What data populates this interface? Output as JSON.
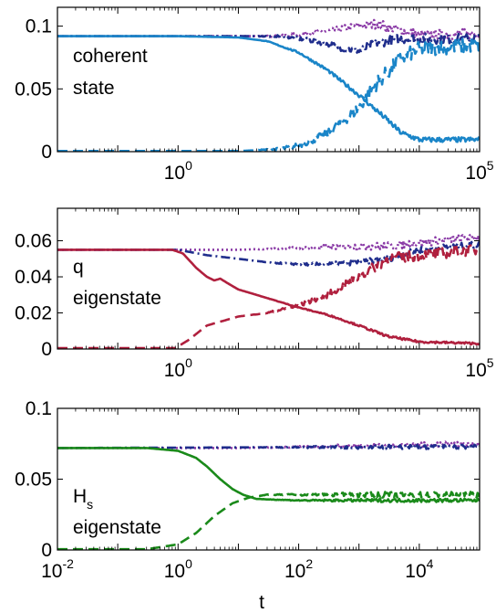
{
  "figure": {
    "xlabel": "t"
  },
  "chart_data": [
    {
      "type": "line",
      "title": "",
      "xlabel": "",
      "ylabel": "",
      "x_scale": "log",
      "xlim": [
        0.01,
        100000
      ],
      "ylim": [
        0,
        0.115
      ],
      "yticks": [
        0,
        0.05,
        0.1
      ],
      "ytick_labels": [
        "0",
        "0.05",
        "0.1"
      ],
      "xticks": [
        {
          "base": "10",
          "exp": "0",
          "value": 1
        },
        {
          "base": "10",
          "exp": "5",
          "value": 100000
        }
      ],
      "annotation": [
        "coherent",
        "state"
      ],
      "color_main": "#1a85c8",
      "series": [
        {
          "style": "solid",
          "color": "#1a85c8",
          "noise": 0.002,
          "points": [
            [
              0.01,
              0.092
            ],
            [
              1,
              0.092
            ],
            [
              10,
              0.091
            ],
            [
              30,
              0.088
            ],
            [
              100,
              0.079
            ],
            [
              300,
              0.065
            ],
            [
              1000,
              0.045
            ],
            [
              3000,
              0.025
            ],
            [
              5000,
              0.015
            ],
            [
              10000,
              0.0095
            ],
            [
              100000,
              0.0095
            ]
          ]
        },
        {
          "style": "dashed",
          "color": "#1a85c8",
          "noise": 0.006,
          "points": [
            [
              0.01,
              0.0005
            ],
            [
              10,
              0.0005
            ],
            [
              50,
              0.002
            ],
            [
              100,
              0.005
            ],
            [
              300,
              0.014
            ],
            [
              1000,
              0.035
            ],
            [
              2000,
              0.055
            ],
            [
              5000,
              0.074
            ],
            [
              10000,
              0.082
            ],
            [
              100000,
              0.085
            ]
          ]
        },
        {
          "style": "dashdot",
          "color": "#1f2d8c",
          "noise": 0.004,
          "points": [
            [
              0.01,
              0.092
            ],
            [
              50,
              0.092
            ],
            [
              200,
              0.088
            ],
            [
              500,
              0.083
            ],
            [
              1000,
              0.08
            ],
            [
              2000,
              0.087
            ],
            [
              5000,
              0.09
            ],
            [
              100000,
              0.09
            ]
          ]
        },
        {
          "style": "dotted",
          "color": "#8a3aa6",
          "noise": 0.004,
          "points": [
            [
              0.01,
              0.092
            ],
            [
              50,
              0.092
            ],
            [
              300,
              0.096
            ],
            [
              1000,
              0.1
            ],
            [
              2000,
              0.102
            ],
            [
              3000,
              0.099
            ],
            [
              10000,
              0.093
            ],
            [
              100000,
              0.094
            ]
          ]
        }
      ]
    },
    {
      "type": "line",
      "title": "",
      "xlabel": "",
      "ylabel": "",
      "x_scale": "log",
      "xlim": [
        0.01,
        100000
      ],
      "ylim": [
        0,
        0.078
      ],
      "yticks": [
        0,
        0.02,
        0.04,
        0.06
      ],
      "ytick_labels": [
        "0",
        "0.02",
        "0.04",
        "0.06"
      ],
      "xticks": [
        {
          "base": "10",
          "exp": "0",
          "value": 1
        },
        {
          "base": "10",
          "exp": "5",
          "value": 100000
        }
      ],
      "annotation": [
        "q",
        "eigenstate"
      ],
      "color_main": "#b0203e",
      "series": [
        {
          "style": "solid",
          "color": "#b0203e",
          "noise": 0.0006,
          "points": [
            [
              0.01,
              0.055
            ],
            [
              0.8,
              0.055
            ],
            [
              1.2,
              0.053
            ],
            [
              2,
              0.045
            ],
            [
              3,
              0.04
            ],
            [
              4,
              0.038
            ],
            [
              5,
              0.039
            ],
            [
              7,
              0.036
            ],
            [
              10,
              0.033
            ],
            [
              20,
              0.03
            ],
            [
              50,
              0.026
            ],
            [
              100,
              0.023
            ],
            [
              300,
              0.019
            ],
            [
              1000,
              0.013
            ],
            [
              3000,
              0.007
            ],
            [
              10000,
              0.004
            ],
            [
              100000,
              0.003
            ]
          ]
        },
        {
          "style": "dashed",
          "color": "#b0203e",
          "noise": 0.003,
          "points": [
            [
              0.01,
              0.0005
            ],
            [
              0.9,
              0.0005
            ],
            [
              1.5,
              0.005
            ],
            [
              3,
              0.013
            ],
            [
              10,
              0.018
            ],
            [
              30,
              0.02
            ],
            [
              100,
              0.024
            ],
            [
              300,
              0.03
            ],
            [
              1000,
              0.04
            ],
            [
              3000,
              0.05
            ],
            [
              10000,
              0.052
            ],
            [
              100000,
              0.055
            ]
          ]
        },
        {
          "style": "dashdot",
          "color": "#1f2d8c",
          "noise": 0.0018,
          "points": [
            [
              0.01,
              0.055
            ],
            [
              1,
              0.055
            ],
            [
              3,
              0.052
            ],
            [
              10,
              0.05
            ],
            [
              30,
              0.048
            ],
            [
              100,
              0.047
            ],
            [
              300,
              0.047
            ],
            [
              1000,
              0.048
            ],
            [
              3000,
              0.05
            ],
            [
              10000,
              0.055
            ],
            [
              100000,
              0.058
            ]
          ]
        },
        {
          "style": "dotted",
          "color": "#8a3aa6",
          "noise": 0.0022,
          "points": [
            [
              0.01,
              0.055
            ],
            [
              10,
              0.055
            ],
            [
              100,
              0.056
            ],
            [
              1000,
              0.057
            ],
            [
              3000,
              0.057
            ],
            [
              10000,
              0.059
            ],
            [
              100000,
              0.062
            ]
          ]
        }
      ]
    },
    {
      "type": "line",
      "title": "",
      "xlabel": "t",
      "ylabel": "",
      "x_scale": "log",
      "xlim": [
        0.01,
        100000
      ],
      "ylim": [
        0,
        0.1
      ],
      "yticks": [
        0,
        0.05,
        0.1
      ],
      "ytick_labels": [
        "0",
        "0.05",
        "0.1"
      ],
      "xticks": [
        {
          "base": "10",
          "exp": "-2",
          "value": 0.01
        },
        {
          "base": "10",
          "exp": "0",
          "value": 1
        },
        {
          "base": "10",
          "exp": "2",
          "value": 100
        },
        {
          "base": "10",
          "exp": "4",
          "value": 10000
        }
      ],
      "annotation": [
        "H",
        "s",
        "eigenstate"
      ],
      "color_main": "#1a8a1a",
      "series": [
        {
          "style": "solid",
          "color": "#1a8a1a",
          "noise": 0.0012,
          "points": [
            [
              0.01,
              0.072
            ],
            [
              0.3,
              0.072
            ],
            [
              1,
              0.07
            ],
            [
              2,
              0.065
            ],
            [
              3,
              0.059
            ],
            [
              5,
              0.05
            ],
            [
              8,
              0.043
            ],
            [
              12,
              0.039
            ],
            [
              20,
              0.036
            ],
            [
              100,
              0.035
            ],
            [
              100000,
              0.035
            ]
          ]
        },
        {
          "style": "dashed",
          "color": "#1a8a1a",
          "noise": 0.002,
          "points": [
            [
              0.01,
              0.0005
            ],
            [
              0.3,
              0.0005
            ],
            [
              1,
              0.004
            ],
            [
              2,
              0.012
            ],
            [
              4,
              0.024
            ],
            [
              8,
              0.033
            ],
            [
              15,
              0.037
            ],
            [
              30,
              0.039
            ],
            [
              100,
              0.039
            ],
            [
              100000,
              0.039
            ]
          ]
        },
        {
          "style": "dashdot",
          "color": "#1f2d8c",
          "noise": 0.0016,
          "points": [
            [
              0.01,
              0.072
            ],
            [
              100000,
              0.073
            ]
          ]
        },
        {
          "style": "dotted",
          "color": "#8a3aa6",
          "noise": 0.0018,
          "points": [
            [
              0.01,
              0.072
            ],
            [
              10,
              0.072
            ],
            [
              100000,
              0.075
            ]
          ]
        }
      ]
    }
  ]
}
